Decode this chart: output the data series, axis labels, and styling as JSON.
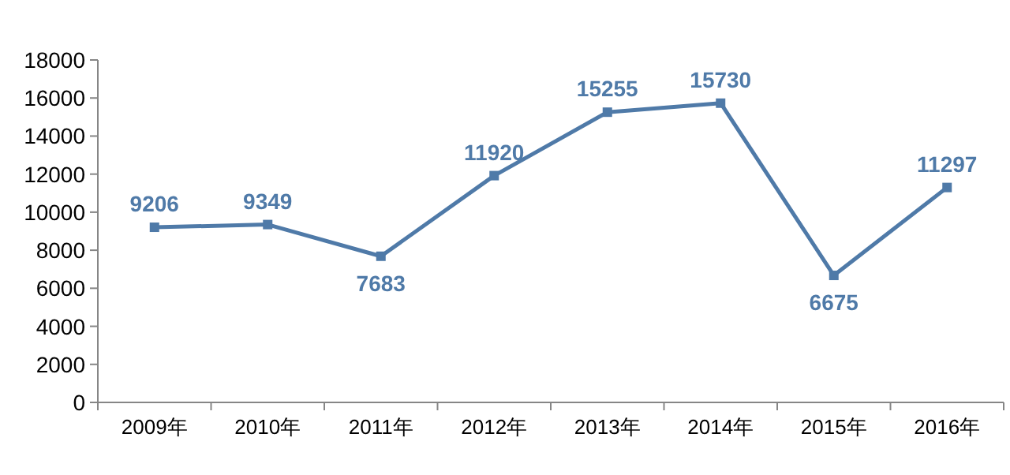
{
  "chart_data": {
    "type": "line",
    "categories": [
      "2009年",
      "2010年",
      "2011年",
      "2012年",
      "2013年",
      "2014年",
      "2015年",
      "2016年"
    ],
    "values": [
      9206,
      9349,
      7683,
      11920,
      15255,
      15730,
      6675,
      11297
    ],
    "color": "#4f7aa8",
    "ylim": [
      0,
      18000
    ],
    "yticks": [
      0,
      2000,
      4000,
      6000,
      8000,
      10000,
      12000,
      14000,
      16000,
      18000
    ],
    "data_labels": true,
    "marker": "square"
  }
}
